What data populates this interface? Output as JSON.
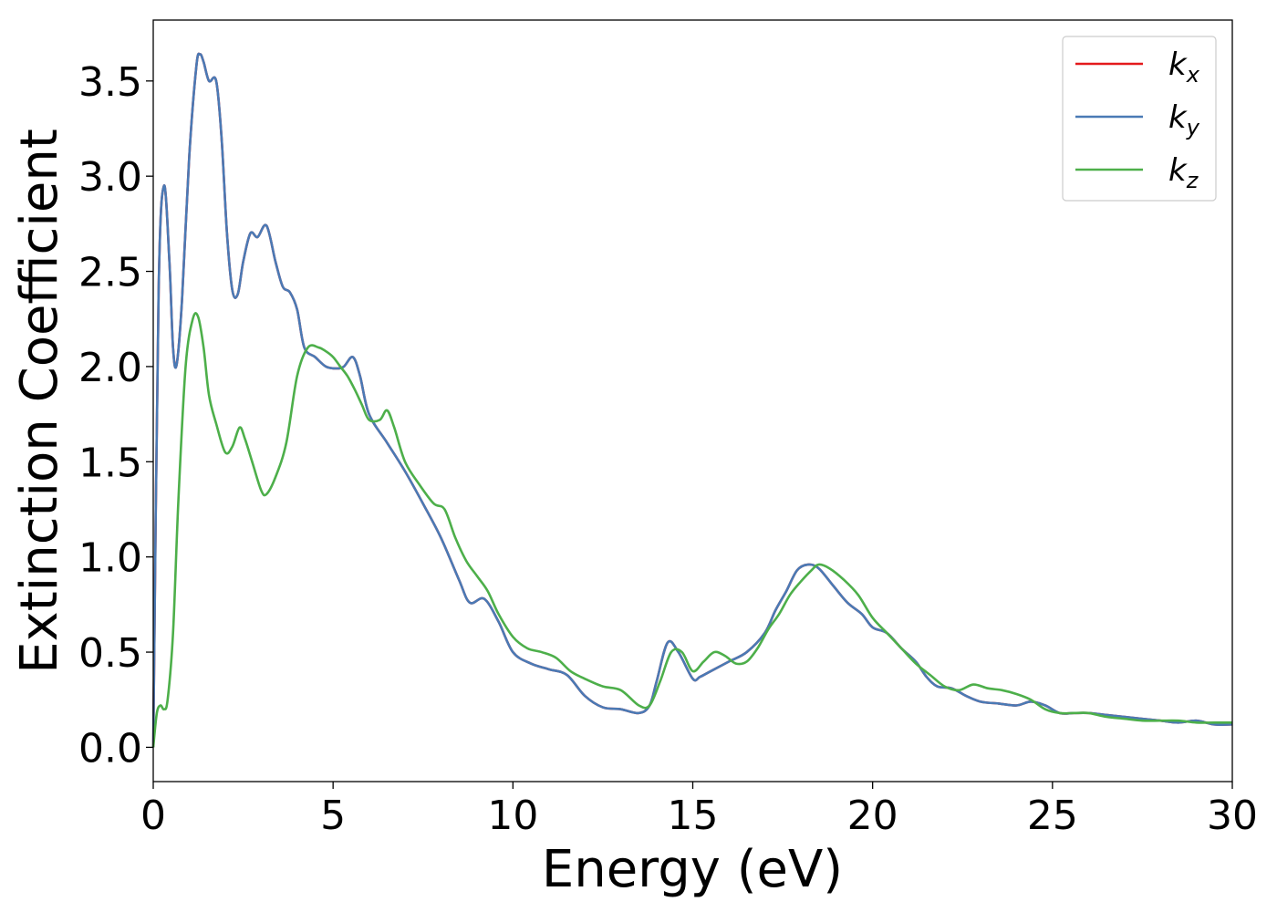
{
  "chart_data": {
    "type": "line",
    "xlabel": "Energy (eV)",
    "ylabel": "Extinction Coefficient",
    "xlim": [
      0,
      30
    ],
    "ylim": [
      -0.18,
      3.82
    ],
    "xticks": [
      "0",
      "5",
      "10",
      "15",
      "20",
      "25",
      "30"
    ],
    "yticks": [
      "0.0",
      "0.5",
      "1.0",
      "1.5",
      "2.0",
      "2.5",
      "3.0",
      "3.5"
    ],
    "grid": false,
    "legend_position": "top-right",
    "series": [
      {
        "name": "k_x",
        "label_main": "k",
        "label_sub": "x",
        "color": "#e41a1c",
        "x": [
          0,
          0.15,
          0.3,
          0.45,
          0.55,
          0.65,
          0.8,
          1.0,
          1.2,
          1.3,
          1.4,
          1.55,
          1.75,
          1.9,
          2.05,
          2.2,
          2.35,
          2.5,
          2.7,
          2.9,
          3.15,
          3.4,
          3.6,
          3.8,
          4.0,
          4.2,
          4.5,
          4.8,
          5.1,
          5.3,
          5.55,
          5.75,
          6.0,
          6.5,
          7.0,
          7.5,
          8.0,
          8.5,
          8.8,
          9.2,
          9.6,
          10.0,
          10.5,
          11.0,
          11.5,
          12.0,
          12.5,
          13.0,
          13.5,
          13.8,
          14.0,
          14.3,
          14.6,
          15.0,
          15.2,
          15.5,
          16.0,
          16.5,
          17.0,
          17.3,
          17.6,
          17.9,
          18.2,
          18.5,
          18.9,
          19.3,
          19.7,
          20.0,
          20.4,
          20.8,
          21.2,
          21.5,
          21.8,
          22.2,
          22.6,
          23.0,
          23.5,
          24.0,
          24.4,
          24.8,
          25.2,
          25.6,
          26.0,
          26.5,
          27.0,
          27.5,
          28.0,
          28.5,
          29.0,
          29.5,
          30.0
        ],
        "y": [
          0.0,
          2.4,
          2.95,
          2.55,
          2.1,
          2.01,
          2.35,
          3.1,
          3.58,
          3.64,
          3.6,
          3.5,
          3.5,
          3.2,
          2.7,
          2.4,
          2.38,
          2.55,
          2.7,
          2.68,
          2.74,
          2.55,
          2.42,
          2.39,
          2.3,
          2.1,
          2.05,
          2.0,
          1.99,
          2.0,
          2.05,
          1.95,
          1.75,
          1.6,
          1.45,
          1.28,
          1.1,
          0.88,
          0.76,
          0.78,
          0.66,
          0.5,
          0.44,
          0.41,
          0.38,
          0.27,
          0.21,
          0.2,
          0.18,
          0.22,
          0.35,
          0.55,
          0.5,
          0.36,
          0.37,
          0.4,
          0.45,
          0.5,
          0.6,
          0.72,
          0.82,
          0.93,
          0.96,
          0.94,
          0.85,
          0.76,
          0.7,
          0.63,
          0.6,
          0.52,
          0.45,
          0.37,
          0.32,
          0.31,
          0.27,
          0.24,
          0.23,
          0.22,
          0.24,
          0.22,
          0.18,
          0.18,
          0.18,
          0.17,
          0.16,
          0.15,
          0.14,
          0.13,
          0.14,
          0.12,
          0.12
        ]
      },
      {
        "name": "k_y",
        "label_main": "k",
        "label_sub": "y",
        "color": "#4a7ab5",
        "x": [
          0,
          0.15,
          0.3,
          0.45,
          0.55,
          0.65,
          0.8,
          1.0,
          1.2,
          1.3,
          1.4,
          1.55,
          1.75,
          1.9,
          2.05,
          2.2,
          2.35,
          2.5,
          2.7,
          2.9,
          3.15,
          3.4,
          3.6,
          3.8,
          4.0,
          4.2,
          4.5,
          4.8,
          5.1,
          5.3,
          5.55,
          5.75,
          6.0,
          6.5,
          7.0,
          7.5,
          8.0,
          8.5,
          8.8,
          9.2,
          9.6,
          10.0,
          10.5,
          11.0,
          11.5,
          12.0,
          12.5,
          13.0,
          13.5,
          13.8,
          14.0,
          14.3,
          14.6,
          15.0,
          15.2,
          15.5,
          16.0,
          16.5,
          17.0,
          17.3,
          17.6,
          17.9,
          18.2,
          18.5,
          18.9,
          19.3,
          19.7,
          20.0,
          20.4,
          20.8,
          21.2,
          21.5,
          21.8,
          22.2,
          22.6,
          23.0,
          23.5,
          24.0,
          24.4,
          24.8,
          25.2,
          25.6,
          26.0,
          26.5,
          27.0,
          27.5,
          28.0,
          28.5,
          29.0,
          29.5,
          30.0
        ],
        "y": [
          0.0,
          2.4,
          2.95,
          2.55,
          2.1,
          2.01,
          2.35,
          3.1,
          3.58,
          3.64,
          3.6,
          3.5,
          3.5,
          3.2,
          2.7,
          2.4,
          2.38,
          2.55,
          2.7,
          2.68,
          2.74,
          2.55,
          2.42,
          2.39,
          2.3,
          2.1,
          2.05,
          2.0,
          1.99,
          2.0,
          2.05,
          1.95,
          1.75,
          1.6,
          1.45,
          1.28,
          1.1,
          0.88,
          0.76,
          0.78,
          0.66,
          0.5,
          0.44,
          0.41,
          0.38,
          0.27,
          0.21,
          0.2,
          0.18,
          0.22,
          0.35,
          0.55,
          0.5,
          0.36,
          0.37,
          0.4,
          0.45,
          0.5,
          0.6,
          0.72,
          0.82,
          0.93,
          0.96,
          0.94,
          0.85,
          0.76,
          0.7,
          0.63,
          0.6,
          0.52,
          0.45,
          0.37,
          0.32,
          0.31,
          0.27,
          0.24,
          0.23,
          0.22,
          0.24,
          0.22,
          0.18,
          0.18,
          0.18,
          0.17,
          0.16,
          0.15,
          0.14,
          0.13,
          0.14,
          0.12,
          0.12
        ]
      },
      {
        "name": "k_z",
        "label_main": "k",
        "label_sub": "z",
        "color": "#4daf4a",
        "x": [
          0,
          0.1,
          0.2,
          0.3,
          0.4,
          0.55,
          0.7,
          0.9,
          1.1,
          1.25,
          1.4,
          1.55,
          1.75,
          2.0,
          2.2,
          2.4,
          2.55,
          2.75,
          3.0,
          3.15,
          3.4,
          3.7,
          4.0,
          4.3,
          4.6,
          4.8,
          5.0,
          5.2,
          5.4,
          5.6,
          5.8,
          6.0,
          6.3,
          6.5,
          6.7,
          7.0,
          7.4,
          7.8,
          8.1,
          8.4,
          8.7,
          9.0,
          9.3,
          9.6,
          10.0,
          10.4,
          10.8,
          11.2,
          11.6,
          12.0,
          12.5,
          13.0,
          13.5,
          13.8,
          14.1,
          14.4,
          14.7,
          15.0,
          15.3,
          15.6,
          15.9,
          16.2,
          16.5,
          16.8,
          17.1,
          17.4,
          17.7,
          18.0,
          18.3,
          18.5,
          18.8,
          19.2,
          19.6,
          20.0,
          20.4,
          20.8,
          21.2,
          21.6,
          22.0,
          22.4,
          22.8,
          23.2,
          23.6,
          24.0,
          24.4,
          24.8,
          25.2,
          25.6,
          26.0,
          26.5,
          27.0,
          27.5,
          28.0,
          28.5,
          29.0,
          29.5,
          30.0
        ],
        "y": [
          0.0,
          0.18,
          0.22,
          0.2,
          0.25,
          0.6,
          1.3,
          2.0,
          2.25,
          2.26,
          2.1,
          1.85,
          1.7,
          1.55,
          1.58,
          1.68,
          1.62,
          1.5,
          1.35,
          1.33,
          1.42,
          1.6,
          1.95,
          2.1,
          2.1,
          2.08,
          2.05,
          2.0,
          1.95,
          1.88,
          1.8,
          1.72,
          1.72,
          1.77,
          1.68,
          1.5,
          1.38,
          1.28,
          1.25,
          1.1,
          0.98,
          0.9,
          0.82,
          0.7,
          0.58,
          0.52,
          0.5,
          0.47,
          0.4,
          0.36,
          0.32,
          0.3,
          0.22,
          0.22,
          0.35,
          0.5,
          0.5,
          0.4,
          0.45,
          0.5,
          0.48,
          0.44,
          0.45,
          0.52,
          0.62,
          0.7,
          0.8,
          0.87,
          0.93,
          0.96,
          0.94,
          0.88,
          0.8,
          0.68,
          0.6,
          0.52,
          0.44,
          0.38,
          0.32,
          0.3,
          0.33,
          0.31,
          0.3,
          0.28,
          0.25,
          0.2,
          0.18,
          0.18,
          0.18,
          0.16,
          0.15,
          0.14,
          0.14,
          0.14,
          0.13,
          0.13,
          0.13
        ]
      }
    ]
  }
}
